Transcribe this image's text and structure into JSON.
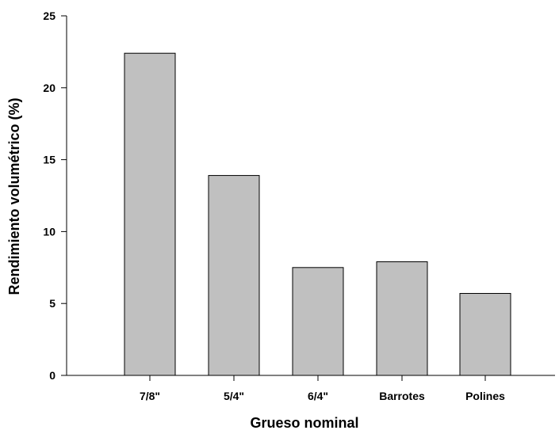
{
  "chart_data": {
    "type": "bar",
    "title": "",
    "xlabel": "Grueso nominal",
    "ylabel": "Rendimiento volumétrico (%)",
    "categories": [
      "7/8\"",
      "5/4\"",
      "6/4\"",
      "Barrotes",
      "Polines"
    ],
    "values": [
      22.4,
      13.9,
      7.5,
      7.9,
      5.7
    ],
    "ylim": [
      0,
      25
    ],
    "yticks": [
      "0",
      "5",
      "10",
      "15",
      "20",
      "25"
    ],
    "grid": false,
    "legend": "none",
    "colors": {
      "bar_fill": "#c0c0c0",
      "bar_stroke": "#000000",
      "axis": "#000000"
    }
  }
}
